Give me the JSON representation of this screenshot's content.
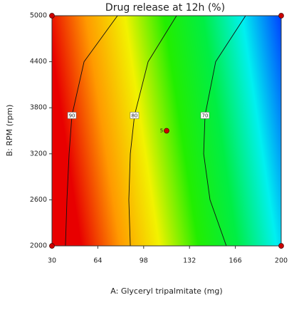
{
  "chart_data": {
    "type": "contour",
    "title": "Drug release at 12h (%)",
    "x_label": "A: Glyceryl tripalmitate (mg)",
    "y_label": "B: RPM (rpm)",
    "xlim": [
      30,
      200
    ],
    "xticks": [
      30,
      64,
      98,
      132,
      166,
      200
    ],
    "ylim": [
      2000,
      5000
    ],
    "yticks": [
      2000,
      2600,
      3200,
      3800,
      4400,
      5000
    ],
    "colormap": [
      "#e80000",
      "#ff9a00",
      "#f2f200",
      "#22ee00",
      "#00ee44",
      "#00f0f0",
      "#0040ff"
    ],
    "line_color": "#111111",
    "contours": [
      {
        "level": 90,
        "x": [
          40.0,
          41.1,
          42.7,
          44.8,
          53.8,
          78.6
        ],
        "y": [
          2000,
          2600,
          3200,
          3700,
          4400,
          5000
        ]
      },
      {
        "level": 80,
        "x": [
          88.1,
          87.0,
          88.1,
          91.2,
          101.3,
          122.4
        ],
        "y": [
          2000,
          2600,
          3200,
          3700,
          4400,
          5000
        ]
      },
      {
        "level": 70,
        "x": [
          159.3,
          147.2,
          142.5,
          143.5,
          151.4,
          173.6
        ],
        "y": [
          2000,
          2600,
          3200,
          3700,
          4400,
          5000
        ]
      }
    ],
    "points": {
      "color": "#cc0000",
      "x": [
        30,
        30,
        200,
        200,
        115
      ],
      "y": [
        2000,
        5000,
        2000,
        5000,
        3500
      ],
      "labels": [
        null,
        null,
        null,
        null,
        "5"
      ]
    }
  }
}
